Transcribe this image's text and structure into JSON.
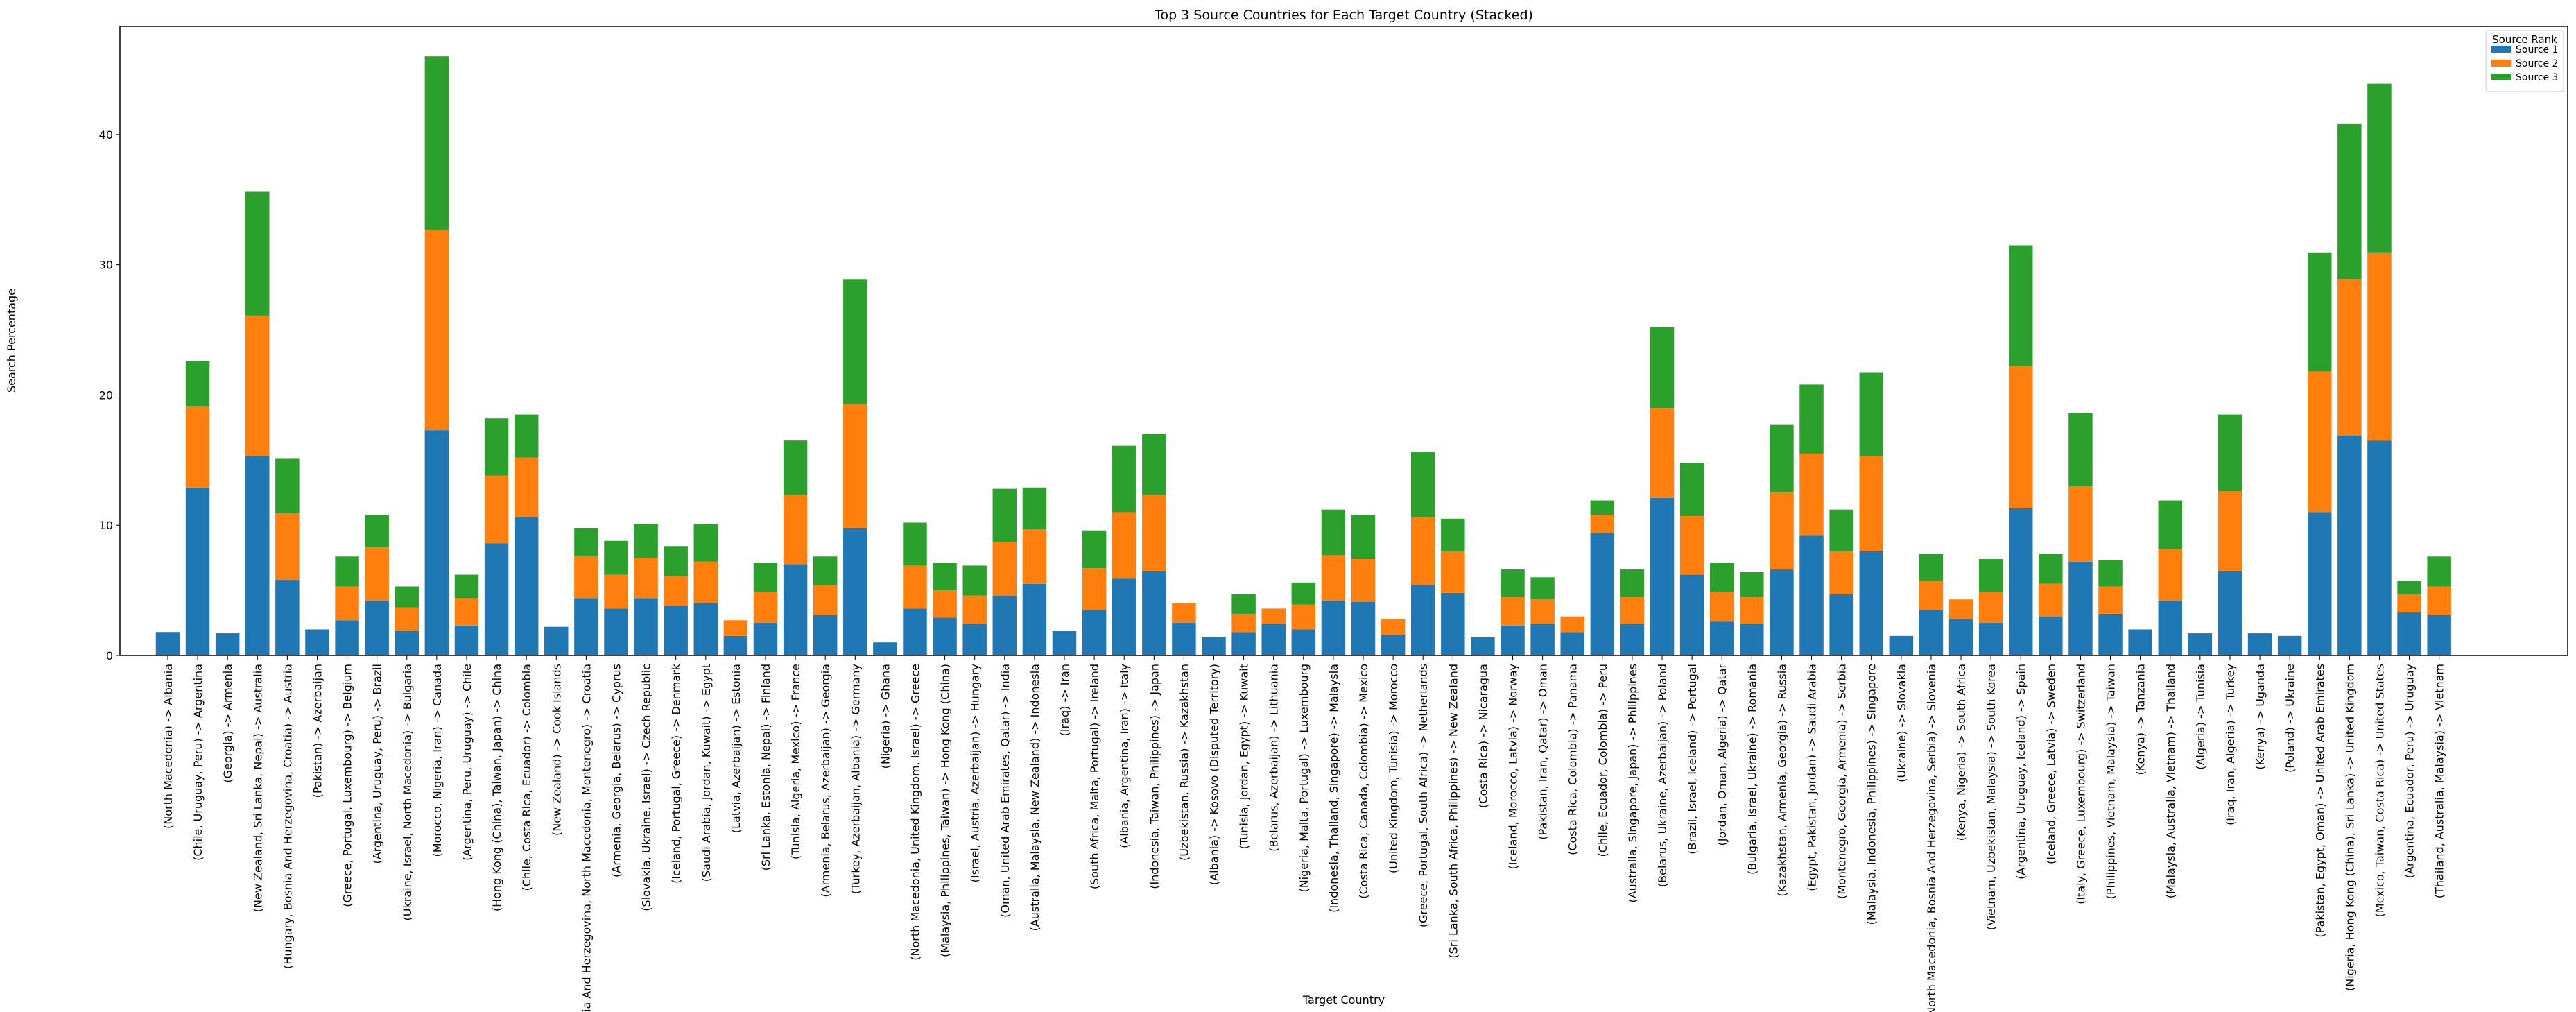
{
  "chart_data": {
    "type": "bar",
    "stacked": true,
    "title": "Top 3 Source Countries for Each Target Country (Stacked)",
    "xlabel": "Target Country",
    "ylabel": "Search Percentage",
    "ylim": [
      0,
      48.3
    ],
    "yticks": [
      0,
      10,
      20,
      30,
      40
    ],
    "legend": {
      "title": "Source Rank",
      "placement": "top-right"
    },
    "categories": [
      "(North Macedonia) -> Albania",
      "(Chile, Uruguay, Peru) -> Argentina",
      "(Georgia) -> Armenia",
      "(New Zealand, Sri Lanka, Nepal) -> Australia",
      "(Hungary, Bosnia And Herzegovina, Croatia) -> Austria",
      "(Pakistan) -> Azerbaijan",
      "(Greece, Portugal, Luxembourg) -> Belgium",
      "(Argentina, Uruguay, Peru) -> Brazil",
      "(Ukraine, Israel, North Macedonia) -> Bulgaria",
      "(Morocco, Nigeria, Iran) -> Canada",
      "(Argentina, Peru, Uruguay) -> Chile",
      "(Hong Kong (China), Taiwan, Japan) -> China",
      "(Chile, Costa Rica, Ecuador) -> Colombia",
      "(New Zealand) -> Cook Islands",
      "(Bosnia And Herzegovina, North Macedonia, Montenegro) -> Croatia",
      "(Armenia, Georgia, Belarus) -> Cyprus",
      "(Slovakia, Ukraine, Israel) -> Czech Republic",
      "(Iceland, Portugal, Greece) -> Denmark",
      "(Saudi Arabia, Jordan, Kuwait) -> Egypt",
      "(Latvia, Azerbaijan) -> Estonia",
      "(Sri Lanka, Estonia, Nepal) -> Finland",
      "(Tunisia, Algeria, Mexico) -> France",
      "(Armenia, Belarus, Azerbaijan) -> Georgia",
      "(Turkey, Azerbaijan, Albania) -> Germany",
      "(Nigeria) -> Ghana",
      "(North Macedonia, United Kingdom, Israel) -> Greece",
      "(Malaysia, Philippines, Taiwan) -> Hong Kong (China)",
      "(Israel, Austria, Azerbaijan) -> Hungary",
      "(Oman, United Arab Emirates, Qatar) -> India",
      "(Australia, Malaysia, New Zealand) -> Indonesia",
      "(Iraq) -> Iran",
      "(South Africa, Malta, Portugal) -> Ireland",
      "(Albania, Argentina, Iran) -> Italy",
      "(Indonesia, Taiwan, Philippines) -> Japan",
      "(Uzbekistan, Russia) -> Kazakhstan",
      "(Albania) -> Kosovo (Disputed Territory)",
      "(Tunisia, Jordan, Egypt) -> Kuwait",
      "(Belarus, Azerbaijan) -> Lithuania",
      "(Nigeria, Malta, Portugal) -> Luxembourg",
      "(Indonesia, Thailand, Singapore) -> Malaysia",
      "(Costa Rica, Canada, Colombia) -> Mexico",
      "(United Kingdom, Tunisia) -> Morocco",
      "(Greece, Portugal, South Africa) -> Netherlands",
      "(Sri Lanka, South Africa, Philippines) -> New Zealand",
      "(Costa Rica) -> Nicaragua",
      "(Iceland, Morocco, Latvia) -> Norway",
      "(Pakistan, Iran, Qatar) -> Oman",
      "(Costa Rica, Colombia) -> Panama",
      "(Chile, Ecuador, Colombia) -> Peru",
      "(Australia, Singapore, Japan) -> Philippines",
      "(Belarus, Ukraine, Azerbaijan) -> Poland",
      "(Brazil, Israel, Iceland) -> Portugal",
      "(Jordan, Oman, Algeria) -> Qatar",
      "(Bulgaria, Israel, Ukraine) -> Romania",
      "(Kazakhstan, Armenia, Georgia) -> Russia",
      "(Egypt, Pakistan, Jordan) -> Saudi Arabia",
      "(Montenegro, Georgia, Armenia) -> Serbia",
      "(Malaysia, Indonesia, Philippines) -> Singapore",
      "(Ukraine) -> Slovakia",
      "(North Macedonia, Bosnia And Herzegovina, Serbia) -> Slovenia",
      "(Kenya, Nigeria) -> South Africa",
      "(Vietnam, Uzbekistan, Malaysia) -> South Korea",
      "(Argentina, Uruguay, Iceland) -> Spain",
      "(Iceland, Greece, Latvia) -> Sweden",
      "(Italy, Greece, Luxembourg) -> Switzerland",
      "(Philippines, Vietnam, Malaysia) -> Taiwan",
      "(Kenya) -> Tanzania",
      "(Malaysia, Australia, Vietnam) -> Thailand",
      "(Algeria) -> Tunisia",
      "(Iraq, Iran, Algeria) -> Turkey",
      "(Kenya) -> Uganda",
      "(Poland) -> Ukraine",
      "(Pakistan, Egypt, Oman) -> United Arab Emirates",
      "(Nigeria, Hong Kong (China), Sri Lanka) -> United Kingdom",
      "(Mexico, Taiwan, Costa Rica) -> United States",
      "(Argentina, Ecuador, Peru) -> Uruguay",
      "(Thailand, Australia, Malaysia) -> Vietnam"
    ],
    "series": [
      {
        "name": "Source 1",
        "color": "#1f77b4",
        "values": [
          1.8,
          12.9,
          1.7,
          15.3,
          5.8,
          2.0,
          2.7,
          4.2,
          1.9,
          17.3,
          2.3,
          8.6,
          10.6,
          2.2,
          4.4,
          3.6,
          4.4,
          3.8,
          4.0,
          1.5,
          2.5,
          7.0,
          3.1,
          9.8,
          1.0,
          3.6,
          2.9,
          2.4,
          4.6,
          5.5,
          1.9,
          3.5,
          5.9,
          6.5,
          2.5,
          1.4,
          1.8,
          2.4,
          2.0,
          4.2,
          4.1,
          1.6,
          5.4,
          4.8,
          1.4,
          2.3,
          2.4,
          1.8,
          9.4,
          2.4,
          12.1,
          6.2,
          2.6,
          2.4,
          6.6,
          9.2,
          4.7,
          8.0,
          1.5,
          3.5,
          2.8,
          2.5,
          11.3,
          3.0,
          7.2,
          3.2,
          2.0,
          4.2,
          1.7,
          6.5,
          1.7,
          1.5,
          11.0,
          16.9,
          16.5,
          3.3,
          3.1
        ]
      },
      {
        "name": "Source 2",
        "color": "#ff7f0e",
        "values": [
          0,
          6.2,
          0,
          10.8,
          5.1,
          0,
          2.6,
          4.1,
          1.8,
          15.4,
          2.1,
          5.2,
          4.6,
          0,
          3.2,
          2.6,
          3.1,
          2.3,
          3.2,
          1.2,
          2.4,
          5.3,
          2.3,
          9.5,
          0,
          3.3,
          2.1,
          2.2,
          4.1,
          4.2,
          0,
          3.2,
          5.1,
          5.8,
          1.5,
          0,
          1.4,
          1.2,
          1.9,
          3.5,
          3.3,
          1.2,
          5.2,
          3.2,
          0,
          2.2,
          1.9,
          1.2,
          1.4,
          2.1,
          6.9,
          4.5,
          2.3,
          2.1,
          5.9,
          6.3,
          3.3,
          7.3,
          0,
          2.2,
          1.5,
          2.4,
          10.9,
          2.5,
          5.8,
          2.1,
          0,
          4.0,
          0,
          6.1,
          0,
          0,
          10.8,
          12.0,
          14.4,
          1.4,
          2.2
        ]
      },
      {
        "name": "Source 3",
        "color": "#2ca02c",
        "values": [
          0,
          3.5,
          0,
          9.5,
          4.2,
          0,
          2.3,
          2.5,
          1.6,
          13.3,
          1.8,
          4.4,
          3.3,
          0,
          2.2,
          2.6,
          2.6,
          2.3,
          2.9,
          0,
          2.2,
          4.2,
          2.2,
          9.6,
          0,
          3.3,
          2.1,
          2.3,
          4.1,
          3.2,
          0,
          2.9,
          5.1,
          4.7,
          0,
          0,
          1.5,
          0,
          1.7,
          3.5,
          3.4,
          0,
          5.0,
          2.5,
          0,
          2.1,
          1.7,
          0,
          1.1,
          2.1,
          6.2,
          4.1,
          2.2,
          1.9,
          5.2,
          5.3,
          3.2,
          6.4,
          0,
          2.1,
          0,
          2.5,
          9.3,
          2.3,
          5.6,
          2.0,
          0,
          3.7,
          0,
          5.9,
          0,
          0,
          9.1,
          11.9,
          13.0,
          1.0,
          2.3
        ]
      }
    ]
  }
}
